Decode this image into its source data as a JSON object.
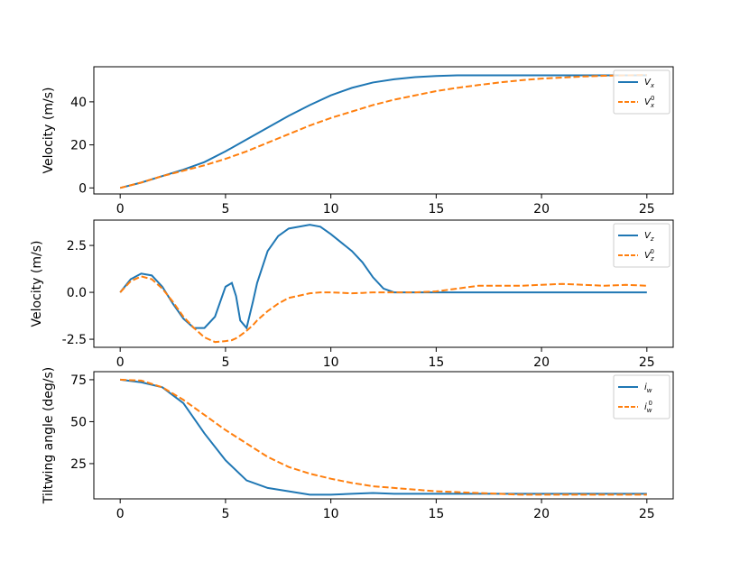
{
  "chart_data": [
    {
      "type": "line",
      "ylabel": "Velocity (m/s)",
      "x": [
        0,
        1,
        2,
        3,
        4,
        5,
        6,
        7,
        8,
        9,
        10,
        11,
        12,
        13,
        14,
        15,
        16,
        17,
        18,
        19,
        20,
        21,
        22,
        23,
        24,
        25
      ],
      "series": [
        {
          "name": "Vx",
          "color": "#1f77b4",
          "linestyle": "solid",
          "values": [
            0,
            2.5,
            5.5,
            8.5,
            12,
            17,
            22.5,
            28,
            33.5,
            38.5,
            43,
            46.5,
            49,
            50.5,
            51.5,
            52,
            52.3,
            52.3,
            52.3,
            52.3,
            52.3,
            52.3,
            52.3,
            52.3,
            52.3,
            52.3
          ]
        },
        {
          "name": "Vx0",
          "color": "#ff7f0e",
          "linestyle": "dashed",
          "values": [
            0,
            2.5,
            5.5,
            8,
            10.5,
            13.5,
            17,
            21,
            25,
            29,
            32.5,
            35.5,
            38.5,
            41,
            43,
            45,
            46.5,
            47.8,
            49,
            50,
            50.8,
            51.3,
            51.8,
            52.1,
            52.3,
            52.5
          ]
        }
      ],
      "xlim": [
        -1.25,
        26.25
      ],
      "xticks": [
        0,
        5,
        10,
        15,
        20,
        25
      ],
      "ylim": [
        -2.8,
        56.3
      ],
      "yticks": [
        0,
        20,
        40
      ],
      "legend": "upper right"
    },
    {
      "type": "line",
      "ylabel": "Velocity (m/s)",
      "x": [
        0,
        0.5,
        1,
        1.5,
        2,
        2.5,
        3,
        3.5,
        4,
        4.5,
        5,
        5.3,
        5.5,
        5.7,
        6,
        6.3,
        6.5,
        7,
        7.5,
        8,
        9,
        9.5,
        10,
        11,
        11.5,
        12,
        12.5,
        13,
        14,
        15,
        16,
        17,
        18,
        19,
        20,
        21,
        22,
        23,
        24,
        25
      ],
      "series": [
        {
          "name": "Vz",
          "color": "#1f77b4",
          "linestyle": "solid",
          "values": [
            0,
            0.7,
            1.0,
            0.9,
            0.3,
            -0.6,
            -1.4,
            -1.9,
            -1.9,
            -1.3,
            0.3,
            0.5,
            -0.2,
            -1.5,
            -1.9,
            -0.5,
            0.5,
            2.2,
            3.0,
            3.4,
            3.6,
            3.5,
            3.1,
            2.2,
            1.6,
            0.8,
            0.2,
            0,
            0,
            0,
            0,
            0,
            0,
            0,
            0,
            0,
            0,
            0,
            0,
            0
          ]
        },
        {
          "name": "Vz0",
          "color": "#ff7f0e",
          "linestyle": "dashed",
          "values": [
            0,
            0.6,
            0.85,
            0.7,
            0.2,
            -0.5,
            -1.3,
            -1.9,
            -2.4,
            -2.65,
            -2.6,
            -2.55,
            -2.45,
            -2.3,
            -2.05,
            -1.75,
            -1.5,
            -1.0,
            -0.6,
            -0.3,
            -0.05,
            0,
            0,
            -0.05,
            -0.03,
            0,
            0,
            0,
            0,
            0.05,
            0.2,
            0.35,
            0.35,
            0.35,
            0.4,
            0.45,
            0.4,
            0.35,
            0.4,
            0.35
          ]
        }
      ],
      "xlim": [
        -1.25,
        26.25
      ],
      "xticks": [
        0,
        5,
        10,
        15,
        20,
        25
      ],
      "ylim": [
        -2.93,
        3.85
      ],
      "yticks": [
        {
          "value": -2.5,
          "label": "-2.5"
        },
        {
          "value": 0,
          "label": "0.0"
        },
        2.5
      ],
      "legend": "upper right"
    },
    {
      "type": "line",
      "ylabel": "Tiltwing angle (deg/s)",
      "x": [
        0,
        1,
        2,
        3,
        4,
        5,
        6,
        7,
        8,
        9,
        10,
        11,
        12,
        13,
        14,
        15,
        16,
        17,
        18,
        19,
        20,
        21,
        22,
        23,
        24,
        25
      ],
      "series": [
        {
          "name": "iw",
          "color": "#1f77b4",
          "linestyle": "solid",
          "values": [
            75,
            73.5,
            70.5,
            61,
            43,
            27,
            15,
            10.5,
            8.5,
            6.5,
            6.5,
            7,
            7.5,
            7,
            7,
            7,
            7,
            7,
            7,
            7,
            7,
            7,
            7,
            7,
            7,
            7
          ]
        },
        {
          "name": "iw0",
          "color": "#ff7f0e",
          "linestyle": "dashed",
          "values": [
            75,
            74.5,
            70.5,
            63,
            54,
            45,
            37,
            29,
            23,
            19,
            16,
            13.5,
            11.5,
            10.5,
            9.5,
            8.5,
            8,
            7.5,
            7,
            6.5,
            6.5,
            6.5,
            6.5,
            6.5,
            6.5,
            6.5
          ]
        }
      ],
      "xlim": [
        -1.25,
        26.25
      ],
      "xticks": [
        0,
        5,
        10,
        15,
        20,
        25
      ],
      "ylim": [
        4.0,
        79.8
      ],
      "yticks": [
        25,
        50,
        75
      ],
      "legend": "upper right"
    }
  ]
}
